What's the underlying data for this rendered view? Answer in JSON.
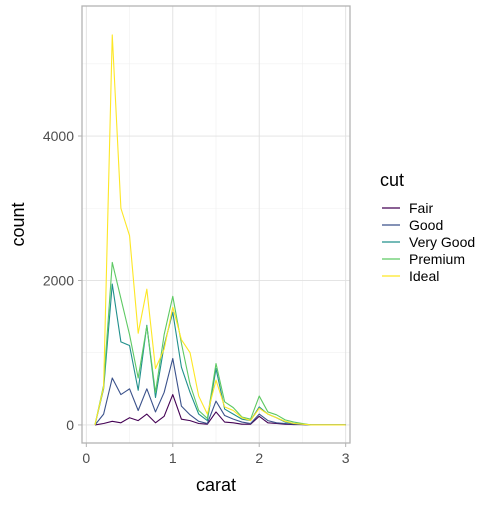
{
  "chart_data": {
    "type": "line",
    "xlabel": "carat",
    "ylabel": "count",
    "xlim": [
      -0.05,
      3.05
    ],
    "ylim": [
      -250,
      5800
    ],
    "x_ticks": [
      0,
      1,
      2,
      3
    ],
    "x_tick_labels": [
      "0",
      "1",
      "2",
      "3"
    ],
    "y_ticks": [
      0,
      2000,
      4000
    ],
    "y_tick_labels": [
      "0",
      "2000",
      "4000"
    ],
    "grid": true,
    "legend": {
      "title": "cut",
      "position": "right"
    },
    "x": [
      0.1,
      0.2,
      0.3,
      0.4,
      0.5,
      0.6,
      0.7,
      0.8,
      0.9,
      1.0,
      1.1,
      1.2,
      1.3,
      1.4,
      1.5,
      1.6,
      1.7,
      1.8,
      1.9,
      2.0,
      2.1,
      2.2,
      2.3,
      2.4,
      2.5,
      2.6,
      2.7,
      2.8,
      2.9,
      3.0
    ],
    "series": [
      {
        "name": "Fair",
        "color": "#440154",
        "values": [
          0,
          20,
          50,
          30,
          100,
          60,
          150,
          30,
          120,
          420,
          80,
          60,
          20,
          10,
          180,
          40,
          30,
          10,
          10,
          120,
          30,
          20,
          10,
          5,
          5,
          0,
          0,
          0,
          0,
          0
        ]
      },
      {
        "name": "Good",
        "color": "#3B528B",
        "values": [
          0,
          150,
          650,
          420,
          500,
          200,
          500,
          180,
          450,
          920,
          260,
          140,
          50,
          20,
          330,
          130,
          80,
          40,
          20,
          150,
          60,
          30,
          20,
          10,
          5,
          0,
          0,
          0,
          0,
          0
        ]
      },
      {
        "name": "Very Good",
        "color": "#21908C",
        "values": [
          0,
          500,
          1950,
          1150,
          1100,
          480,
          1380,
          380,
          1100,
          1560,
          800,
          450,
          150,
          60,
          780,
          220,
          150,
          80,
          60,
          250,
          150,
          100,
          40,
          20,
          10,
          0,
          0,
          0,
          0,
          0
        ]
      },
      {
        "name": "Premium",
        "color": "#5DC963",
        "values": [
          0,
          550,
          2250,
          1750,
          1250,
          650,
          1370,
          450,
          1250,
          1780,
          1130,
          560,
          200,
          90,
          850,
          320,
          240,
          110,
          80,
          400,
          180,
          140,
          70,
          40,
          20,
          0,
          0,
          0,
          0,
          0
        ]
      },
      {
        "name": "Ideal",
        "color": "#FDE725",
        "values": [
          0,
          520,
          5400,
          3000,
          2620,
          1270,
          1880,
          780,
          1050,
          1630,
          1180,
          1000,
          400,
          150,
          620,
          250,
          200,
          100,
          60,
          230,
          150,
          100,
          50,
          20,
          10,
          0,
          0,
          0,
          0,
          0
        ]
      }
    ]
  }
}
